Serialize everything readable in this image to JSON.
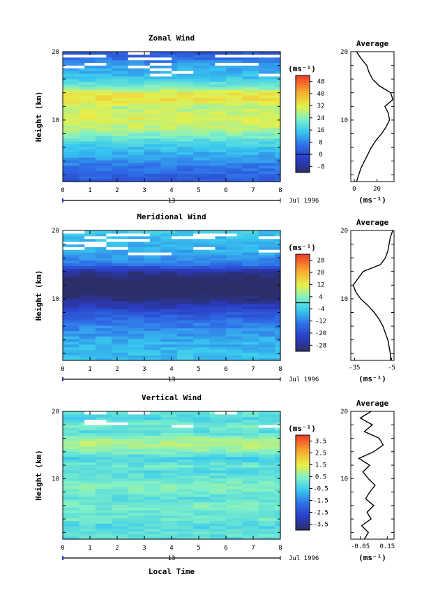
{
  "chart_data": [
    {
      "type": "heatmap",
      "title": "Zonal Wind",
      "ylabel": "Height (km)",
      "unit": "(ms⁻¹)",
      "x_ticks": [
        "0",
        "1",
        "2",
        "3",
        "4",
        "5",
        "6",
        "7",
        "8"
      ],
      "y_ticks": [
        "20",
        "10"
      ],
      "xlim": [
        0,
        8
      ],
      "ylim": [
        1,
        20
      ],
      "day_label": "13",
      "date_label": "Jul 1996",
      "colorbar_ticks": [
        "48",
        "40",
        "32",
        "24",
        "16",
        "8",
        "0",
        "-8"
      ],
      "colorbar_range": [
        -12,
        52
      ],
      "colorbar_marker": 0,
      "profile": {
        "title": "Average",
        "xlabel": "(ms⁻¹)",
        "x_ticks": [
          "0",
          "20"
        ],
        "xlim": [
          -3,
          35
        ],
        "y_ticks": [
          "20",
          "10"
        ],
        "heights": [
          1,
          2,
          3,
          4,
          5,
          6,
          7,
          8,
          9,
          10,
          11,
          12,
          13,
          14,
          15,
          16,
          17,
          18,
          19,
          20
        ],
        "values": [
          2,
          4,
          6,
          9,
          12,
          15,
          19,
          24,
          28,
          31,
          30,
          27,
          34,
          32,
          22,
          16,
          13,
          11,
          6,
          2
        ]
      }
    },
    {
      "type": "heatmap",
      "title": "Meridional Wind",
      "ylabel": "Height (km)",
      "unit": "(ms⁻¹)",
      "x_ticks": [
        "0",
        "1",
        "2",
        "3",
        "4",
        "5",
        "6",
        "7",
        "8"
      ],
      "y_ticks": [
        "20",
        "10"
      ],
      "xlim": [
        0,
        8
      ],
      "ylim": [
        1,
        20
      ],
      "day_label": "13",
      "date_label": "Jul 1996",
      "colorbar_ticks": [
        "28",
        "20",
        "12",
        "4",
        "-4",
        "-12",
        "-20",
        "-28"
      ],
      "colorbar_range": [
        -32,
        32
      ],
      "colorbar_marker": 0,
      "profile": {
        "title": "Average",
        "xlabel": "(ms⁻¹)",
        "x_ticks": [
          "-35",
          "-5"
        ],
        "xlim": [
          -38,
          -3
        ],
        "y_ticks": [
          "20",
          "10"
        ],
        "heights": [
          1,
          2,
          3,
          4,
          5,
          6,
          7,
          8,
          9,
          10,
          11,
          12,
          13,
          14,
          15,
          16,
          17,
          18,
          19,
          20
        ],
        "values": [
          -6,
          -6,
          -7,
          -8,
          -10,
          -12,
          -15,
          -19,
          -24,
          -30,
          -34,
          -36,
          -32,
          -28,
          -14,
          -10,
          -8,
          -7,
          -6,
          -4
        ]
      }
    },
    {
      "type": "heatmap",
      "title": "Vertical Wind",
      "ylabel": "Height (km)",
      "xlabel": "Local Time",
      "unit": "(ms⁻¹)",
      "x_ticks": [
        "0",
        "1",
        "2",
        "3",
        "4",
        "5",
        "6",
        "7",
        "8"
      ],
      "y_ticks": [
        "20",
        "10"
      ],
      "xlim": [
        0,
        8
      ],
      "ylim": [
        1,
        20
      ],
      "day_label": "13",
      "date_label": "Jul 1996",
      "colorbar_ticks": [
        "3.5",
        "2.5",
        "1.5",
        "0.5",
        "-0.5",
        "-1.5",
        "-2.5",
        "-3.5"
      ],
      "colorbar_range": [
        -4,
        4
      ],
      "profile": {
        "title": "Average",
        "xlabel": "(ms⁻¹)",
        "x_ticks": [
          "-0.05",
          "0.15"
        ],
        "xlim": [
          -0.12,
          0.2
        ],
        "y_ticks": [
          "20",
          "10"
        ],
        "heights": [
          1,
          2,
          3,
          4,
          5,
          6,
          7,
          8,
          9,
          10,
          11,
          12,
          13,
          14,
          15,
          16,
          17,
          18,
          19,
          20
        ],
        "values": [
          -0.02,
          0.01,
          -0.04,
          0.03,
          0.0,
          0.05,
          -0.01,
          0.02,
          0.06,
          0.01,
          -0.03,
          0.02,
          -0.06,
          0.05,
          0.12,
          0.09,
          -0.02,
          0.04,
          -0.05,
          0.03
        ]
      }
    }
  ]
}
